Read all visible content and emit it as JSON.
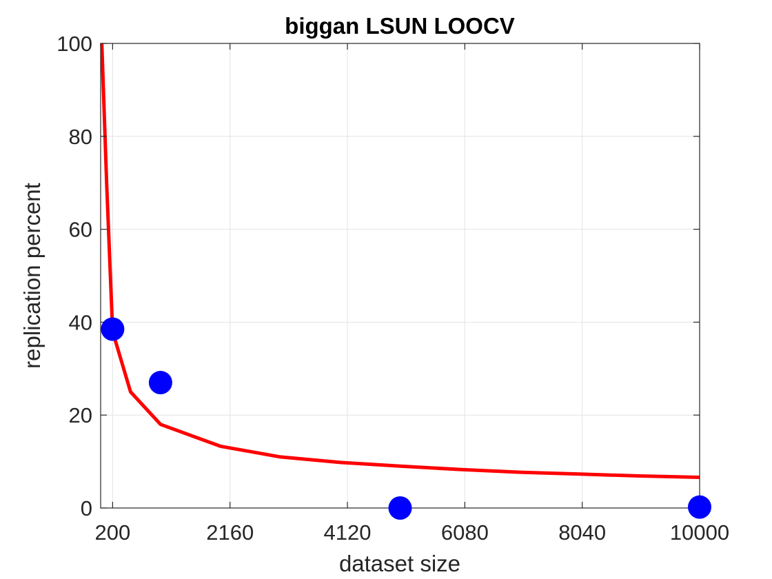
{
  "chart_data": {
    "type": "scatter",
    "title": "biggan LSUN LOOCV",
    "xlabel": "dataset size",
    "ylabel": "replication percent",
    "xlim": [
      0,
      10000
    ],
    "ylim": [
      0,
      100
    ],
    "x_ticks": [
      200,
      2160,
      4120,
      6080,
      8040,
      10000
    ],
    "y_ticks": [
      0,
      20,
      40,
      60,
      80,
      100
    ],
    "grid": true,
    "series": [
      {
        "kind": "points",
        "color": "#0000ff",
        "points": [
          {
            "x": 200,
            "y": 38.5
          },
          {
            "x": 1000,
            "y": 27.0
          },
          {
            "x": 5000,
            "y": 0.0
          },
          {
            "x": 10000,
            "y": 0.2
          }
        ]
      },
      {
        "kind": "fitted-curve",
        "color": "#ff0000",
        "x_range": [
          0,
          10000
        ],
        "samples": [
          {
            "x": 20,
            "y": 100
          },
          {
            "x": 100,
            "y": 70
          },
          {
            "x": 200,
            "y": 38
          },
          {
            "x": 500,
            "y": 25
          },
          {
            "x": 1000,
            "y": 18
          },
          {
            "x": 2000,
            "y": 13.3
          },
          {
            "x": 3000,
            "y": 11
          },
          {
            "x": 4000,
            "y": 9.8
          },
          {
            "x": 5000,
            "y": 9
          },
          {
            "x": 6000,
            "y": 8.3
          },
          {
            "x": 7000,
            "y": 7.7
          },
          {
            "x": 8000,
            "y": 7.3
          },
          {
            "x": 9000,
            "y": 6.9
          },
          {
            "x": 10000,
            "y": 6.6
          }
        ]
      }
    ]
  }
}
